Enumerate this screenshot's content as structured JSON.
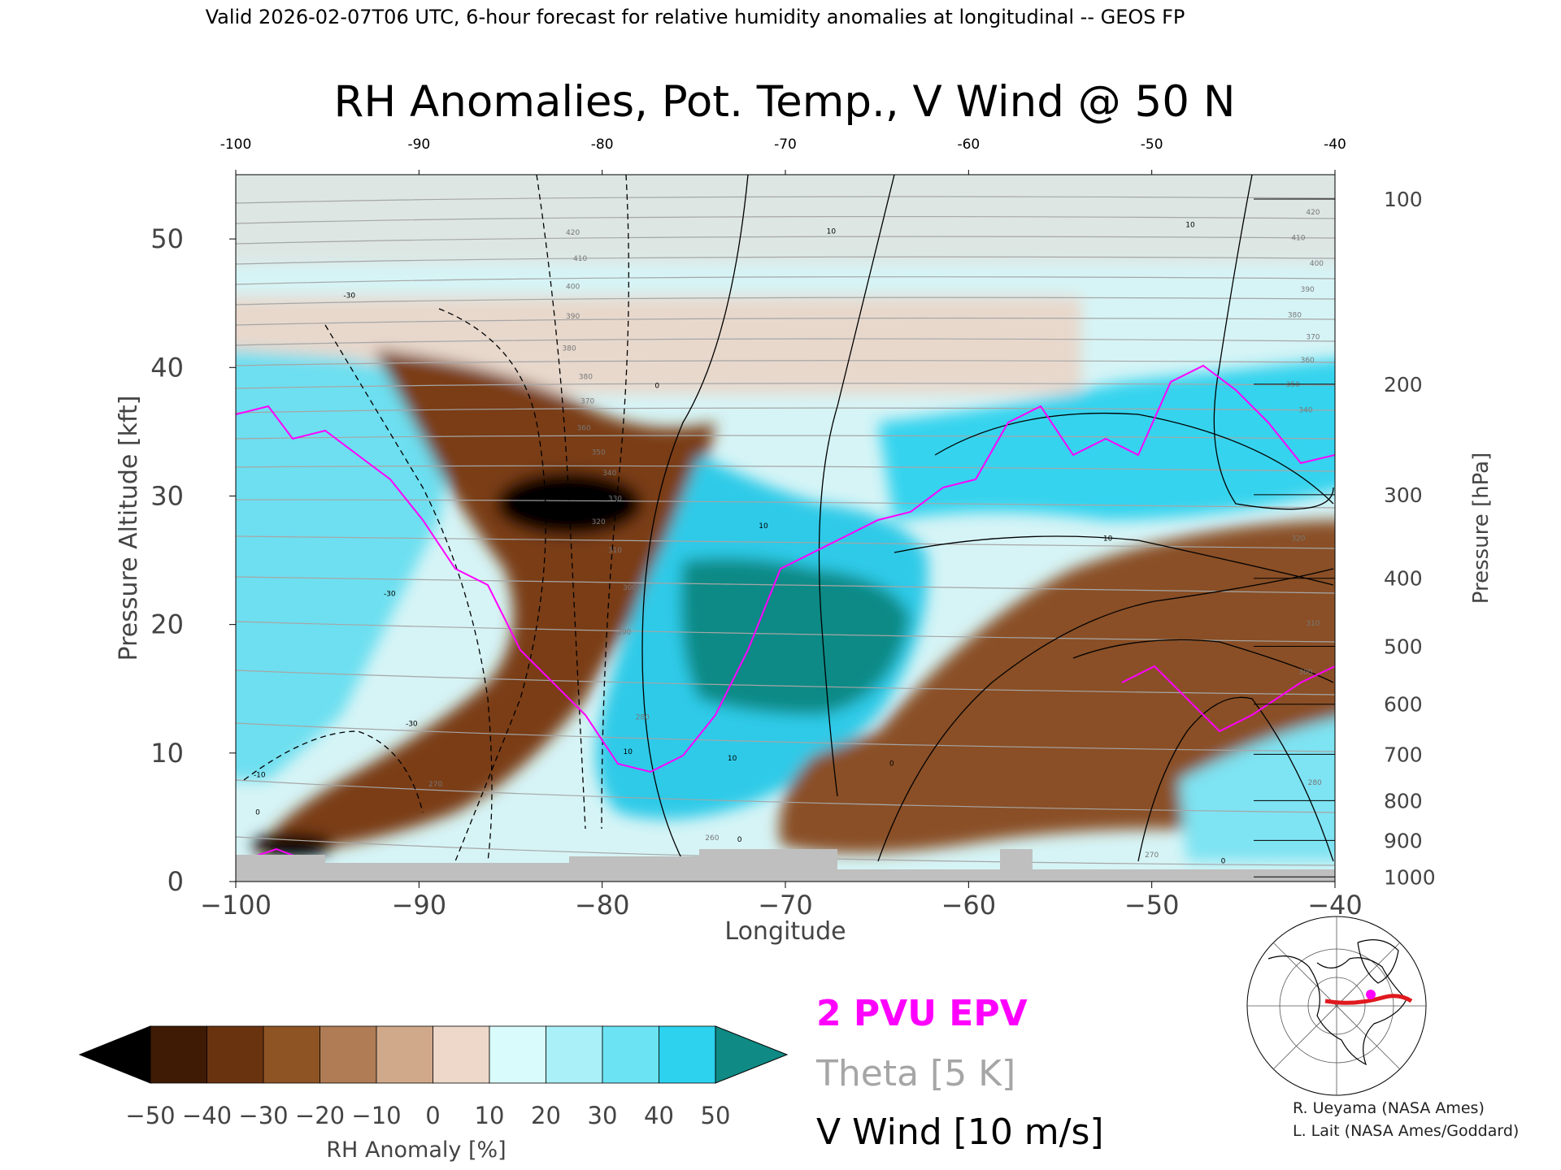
{
  "header": {
    "valid_line": "Valid 2026-02-07T06 UTC, 6-hour forecast for relative humidity anomalies at longitudinal -- GEOS FP",
    "title": "RH Anomalies, Pot. Temp., V Wind @ 50 N"
  },
  "chart_data": {
    "type": "heatmap",
    "title": "RH Anomalies, Pot. Temp., V Wind @ 50 N",
    "xlabel": "Longitude",
    "ylabel": "Pressure Altitude [kft]",
    "ylabel_right": "Pressure [hPa]",
    "xlim": [
      -100,
      -40
    ],
    "ylim": [
      0,
      55
    ],
    "x_ticks": [
      -100,
      -90,
      -80,
      -70,
      -60,
      -50,
      -40
    ],
    "x_tick_labels_bottom": [
      "−100",
      "−90",
      "−80",
      "−70",
      "−60",
      "−50",
      "−40"
    ],
    "x_tick_labels_top": [
      "-100",
      "-90",
      "-80",
      "-70",
      "-60",
      "-50",
      "-40"
    ],
    "y_ticks": [
      0,
      10,
      20,
      30,
      40,
      50
    ],
    "y_tick_labels": [
      "0",
      "10",
      "20",
      "30",
      "40",
      "50"
    ],
    "pressure_ticks": [
      {
        "label": "100",
        "kft": 53.1
      },
      {
        "label": "200",
        "kft": 38.7
      },
      {
        "label": "300",
        "kft": 30.1
      },
      {
        "label": "400",
        "kft": 23.6
      },
      {
        "label": "500",
        "kft": 18.3
      },
      {
        "label": "600",
        "kft": 13.8
      },
      {
        "label": "700",
        "kft": 9.9
      },
      {
        "label": "800",
        "kft": 6.3
      },
      {
        "label": "900",
        "kft": 3.2
      },
      {
        "label": "1000",
        "kft": 0.36
      }
    ],
    "theta_labels": [
      {
        "text": "420",
        "lon": -81.6,
        "kft": 50.5
      },
      {
        "text": "410",
        "lon": -81.2,
        "kft": 48.5
      },
      {
        "text": "400",
        "lon": -81.6,
        "kft": 46.3
      },
      {
        "text": "390",
        "lon": -81.6,
        "kft": 44.0
      },
      {
        "text": "380",
        "lon": -81.8,
        "kft": 41.5
      },
      {
        "text": "380",
        "lon": -80.9,
        "kft": 39.3
      },
      {
        "text": "370",
        "lon": -80.8,
        "kft": 37.4
      },
      {
        "text": "360",
        "lon": -81.0,
        "kft": 35.3
      },
      {
        "text": "350",
        "lon": -80.2,
        "kft": 33.4
      },
      {
        "text": "340",
        "lon": -79.6,
        "kft": 31.8
      },
      {
        "text": "330",
        "lon": -79.3,
        "kft": 29.8
      },
      {
        "text": "320",
        "lon": -80.2,
        "kft": 28.0
      },
      {
        "text": "310",
        "lon": -79.3,
        "kft": 25.8
      },
      {
        "text": "300",
        "lon": -78.5,
        "kft": 22.9
      },
      {
        "text": "290",
        "lon": -78.8,
        "kft": 19.4
      },
      {
        "text": "280",
        "lon": -77.8,
        "kft": 12.8
      },
      {
        "text": "270",
        "lon": -89.1,
        "kft": 7.6
      },
      {
        "text": "260",
        "lon": -74.0,
        "kft": 3.4
      },
      {
        "text": "270",
        "lon": -50.0,
        "kft": 2.1
      },
      {
        "text": "280",
        "lon": -41.1,
        "kft": 7.7
      },
      {
        "text": "300",
        "lon": -41.6,
        "kft": 16.3
      },
      {
        "text": "310",
        "lon": -41.2,
        "kft": 20.1
      },
      {
        "text": "320",
        "lon": -42.0,
        "kft": 26.7
      },
      {
        "text": "340",
        "lon": -41.6,
        "kft": 36.7
      },
      {
        "text": "350",
        "lon": -42.3,
        "kft": 38.7
      },
      {
        "text": "360",
        "lon": -41.5,
        "kft": 40.6
      },
      {
        "text": "370",
        "lon": -41.2,
        "kft": 42.4
      },
      {
        "text": "380",
        "lon": -42.2,
        "kft": 44.1
      },
      {
        "text": "390",
        "lon": -41.5,
        "kft": 46.1
      },
      {
        "text": "400",
        "lon": -41.0,
        "kft": 48.1
      },
      {
        "text": "410",
        "lon": -42.0,
        "kft": 50.1
      },
      {
        "text": "420",
        "lon": -41.2,
        "kft": 52.1
      }
    ],
    "vwind_labels": [
      {
        "text": "-30",
        "lon": -93.8,
        "kft": 45.6
      },
      {
        "text": "-30",
        "lon": -91.6,
        "kft": 22.4
      },
      {
        "text": "-30",
        "lon": -90.4,
        "kft": 12.3
      },
      {
        "text": "-10",
        "lon": -98.7,
        "kft": 8.3
      },
      {
        "text": "0",
        "lon": -98.8,
        "kft": 5.4
      },
      {
        "text": "0",
        "lon": -77.0,
        "kft": 38.6
      },
      {
        "text": "10",
        "lon": -67.5,
        "kft": 50.6
      },
      {
        "text": "10",
        "lon": -47.9,
        "kft": 51.1
      },
      {
        "text": "10",
        "lon": -71.2,
        "kft": 27.7
      },
      {
        "text": "10",
        "lon": -52.4,
        "kft": 26.7
      },
      {
        "text": "10",
        "lon": -78.6,
        "kft": 10.1
      },
      {
        "text": "10",
        "lon": -72.9,
        "kft": 9.6
      },
      {
        "text": "0",
        "lon": -72.5,
        "kft": 3.3
      },
      {
        "text": "0",
        "lon": -64.2,
        "kft": 9.2
      },
      {
        "text": "0",
        "lon": -46.1,
        "kft": 1.6
      }
    ],
    "legend": {
      "epv": "2 PVU EPV",
      "theta": "Theta [5 K]",
      "vwind": "V Wind [10 m/s]"
    },
    "colorbar": {
      "label": "RH Anomaly [%]",
      "tick_labels": [
        "−50",
        "−40",
        "−30",
        "−20",
        "−10",
        "0",
        "10",
        "20",
        "30",
        "40",
        "50"
      ],
      "colors": [
        "#000000",
        "#3f1a04",
        "#6a3310",
        "#8e5424",
        "#b07c55",
        "#d0a98b",
        "#eed8ca",
        "#d9fbfb",
        "#a9f0f8",
        "#6ce3f2",
        "#2cd2ee",
        "#109ab6",
        "#0f8a84"
      ]
    }
  },
  "credits": {
    "line1": "R. Ueyama (NASA Ames)",
    "line2": "L. Lait (NASA Ames/Goddard)"
  },
  "colors": {
    "epv": "#ff00ff",
    "theta": "#a6a6a6",
    "vwind": "#000000",
    "terrain": "#bfbfbf",
    "cross_section_line": "#e0191e"
  }
}
